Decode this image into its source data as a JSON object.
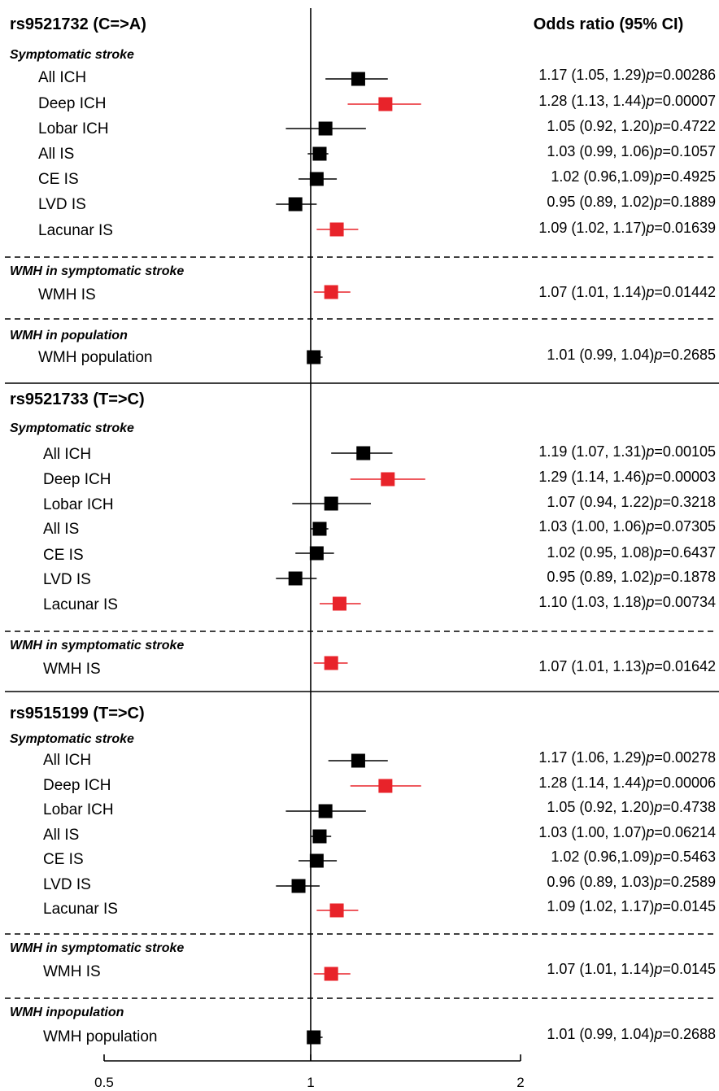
{
  "chart_data": {
    "type": "forest",
    "column_header": "Odds ratio (95% CI)",
    "x_scale": "log",
    "xlim": [
      0.5,
      2
    ],
    "reference_line": 1,
    "x_ticks": [
      {
        "value": 0.5,
        "label": "0.5"
      },
      {
        "value": 1,
        "label": "1"
      },
      {
        "value": 2,
        "label": "2"
      }
    ],
    "colors": {
      "default": "#000000",
      "significant": "#e8232a"
    },
    "blocks": [
      {
        "title": "rs9521732 (C=>A)",
        "sections": [
          {
            "title": "Symptomatic stroke",
            "rows": [
              {
                "label": "All ICH",
                "or": 1.17,
                "lo": 1.05,
                "hi": 1.29,
                "ci_text": "1.17 (1.05, 1.29)",
                "p_label": "p",
                "p_value": "=0.00286",
                "highlight": false
              },
              {
                "label": "Deep ICH",
                "or": 1.28,
                "lo": 1.13,
                "hi": 1.44,
                "ci_text": "1.28 (1.13, 1.44)",
                "p_label": "p",
                "p_value": "=0.00007",
                "highlight": true
              },
              {
                "label": "Lobar ICH",
                "or": 1.05,
                "lo": 0.92,
                "hi": 1.2,
                "ci_text": "1.05 (0.92, 1.20)",
                "p_label": "p",
                "p_value": "=0.4722",
                "highlight": false
              },
              {
                "label": "All IS",
                "or": 1.03,
                "lo": 0.99,
                "hi": 1.06,
                "ci_text": "1.03 (0.99, 1.06)",
                "p_label": "p",
                "p_value": "=0.1057",
                "highlight": false
              },
              {
                "label": "CE IS",
                "or": 1.02,
                "lo": 0.96,
                "hi": 1.09,
                "ci_text": "1.02 (0.96,1.09)",
                "p_label": "p",
                "p_value": "=0.4925",
                "highlight": false
              },
              {
                "label": "LVD IS",
                "or": 0.95,
                "lo": 0.89,
                "hi": 1.02,
                "ci_text": "0.95 (0.89, 1.02)",
                "p_label": "p",
                "p_value": "=0.1889",
                "highlight": false
              },
              {
                "label": "Lacunar IS",
                "or": 1.09,
                "lo": 1.02,
                "hi": 1.17,
                "ci_text": "1.09 (1.02, 1.17)",
                "p_label": "p",
                "p_value": "=0.01639",
                "highlight": true
              }
            ]
          },
          {
            "title": "WMH in symptomatic stroke",
            "rows": [
              {
                "label": "WMH IS",
                "or": 1.07,
                "lo": 1.01,
                "hi": 1.14,
                "ci_text": "1.07 (1.01, 1.14)",
                "p_label": "p",
                "p_value": "=0.01442",
                "highlight": true
              }
            ]
          },
          {
            "title": "WMH in population",
            "rows": [
              {
                "label": "WMH population",
                "or": 1.01,
                "lo": 0.99,
                "hi": 1.04,
                "ci_text": "1.01 (0.99, 1.04)",
                "p_label": "p",
                "p_value": "=0.2685",
                "highlight": false
              }
            ]
          }
        ]
      },
      {
        "title": "rs9521733 (T=>C)",
        "sections": [
          {
            "title": "Symptomatic stroke",
            "rows": [
              {
                "label": "All ICH",
                "or": 1.19,
                "lo": 1.07,
                "hi": 1.31,
                "ci_text": "1.19 (1.07, 1.31)",
                "p_label": "p",
                "p_value": "=0.00105",
                "highlight": false
              },
              {
                "label": "Deep ICH",
                "or": 1.29,
                "lo": 1.14,
                "hi": 1.46,
                "ci_text": "1.29 (1.14, 1.46)",
                "p_label": "p",
                "p_value": "=0.00003",
                "highlight": true
              },
              {
                "label": "Lobar ICH",
                "or": 1.07,
                "lo": 0.94,
                "hi": 1.22,
                "ci_text": "1.07 (0.94, 1.22)",
                "p_label": "p",
                "p_value": "=0.3218",
                "highlight": false
              },
              {
                "label": "All IS",
                "or": 1.03,
                "lo": 1.0,
                "hi": 1.06,
                "ci_text": "1.03 (1.00, 1.06)",
                "p_label": "p",
                "p_value": "=0.07305",
                "highlight": false
              },
              {
                "label": "CE IS",
                "or": 1.02,
                "lo": 0.95,
                "hi": 1.08,
                "ci_text": "1.02 (0.95, 1.08)",
                "p_label": "p",
                "p_value": "=0.6437",
                "highlight": false
              },
              {
                "label": "LVD IS",
                "or": 0.95,
                "lo": 0.89,
                "hi": 1.02,
                "ci_text": "0.95 (0.89, 1.02)",
                "p_label": "p",
                "p_value": "=0.1878",
                "highlight": false
              },
              {
                "label": "Lacunar IS",
                "or": 1.1,
                "lo": 1.03,
                "hi": 1.18,
                "ci_text": "1.10 (1.03, 1.18)",
                "p_label": "p",
                "p_value": "=0.00734",
                "highlight": true
              }
            ]
          },
          {
            "title": "WMH in symptomatic stroke",
            "rows": [
              {
                "label": "WMH IS",
                "or": 1.07,
                "lo": 1.01,
                "hi": 1.13,
                "ci_text": "1.07 (1.01, 1.13)",
                "p_label": "p",
                "p_value": "=0.01642",
                "highlight": true
              }
            ]
          }
        ]
      },
      {
        "title": "rs9515199 (T=>C)",
        "sections": [
          {
            "title": "Symptomatic stroke",
            "rows": [
              {
                "label": "All ICH",
                "or": 1.17,
                "lo": 1.06,
                "hi": 1.29,
                "ci_text": "1.17 (1.06, 1.29)",
                "p_label": "p",
                "p_value": "=0.00278",
                "highlight": false
              },
              {
                "label": "Deep ICH",
                "or": 1.28,
                "lo": 1.14,
                "hi": 1.44,
                "ci_text": "1.28 (1.14, 1.44)",
                "p_label": "p",
                "p_value": "=0.00006",
                "highlight": true
              },
              {
                "label": "Lobar ICH",
                "or": 1.05,
                "lo": 0.92,
                "hi": 1.2,
                "ci_text": "1.05 (0.92, 1.20)",
                "p_label": "p",
                "p_value": "=0.4738",
                "highlight": false
              },
              {
                "label": "All IS",
                "or": 1.03,
                "lo": 1.0,
                "hi": 1.07,
                "ci_text": "1.03 (1.00, 1.07)",
                "p_label": "p",
                "p_value": "=0.06214",
                "highlight": false
              },
              {
                "label": "CE IS",
                "or": 1.02,
                "lo": 0.96,
                "hi": 1.09,
                "ci_text": "1.02 (0.96,1.09)",
                "p_label": "p",
                "p_value": "=0.5463",
                "highlight": false
              },
              {
                "label": "LVD IS",
                "or": 0.96,
                "lo": 0.89,
                "hi": 1.03,
                "ci_text": "0.96 (0.89, 1.03)",
                "p_label": "p",
                "p_value": "=0.2589",
                "highlight": false
              },
              {
                "label": "Lacunar IS",
                "or": 1.09,
                "lo": 1.02,
                "hi": 1.17,
                "ci_text": "1.09 (1.02, 1.17)",
                "p_label": "p",
                "p_value": "=0.0145",
                "highlight": true
              }
            ]
          },
          {
            "title": "WMH in symptomatic stroke",
            "rows": [
              {
                "label": "WMH IS",
                "or": 1.07,
                "lo": 1.01,
                "hi": 1.14,
                "ci_text": "1.07 (1.01, 1.14)",
                "p_label": "p",
                "p_value": "=0.0145",
                "highlight": true
              }
            ]
          },
          {
            "title": "WMH inpopulation",
            "rows": [
              {
                "label": "WMH population",
                "or": 1.01,
                "lo": 0.99,
                "hi": 1.04,
                "ci_text": "1.01 (0.99, 1.04)",
                "p_label": "p",
                "p_value": "=0.2688",
                "highlight": false
              }
            ]
          }
        ]
      }
    ]
  }
}
